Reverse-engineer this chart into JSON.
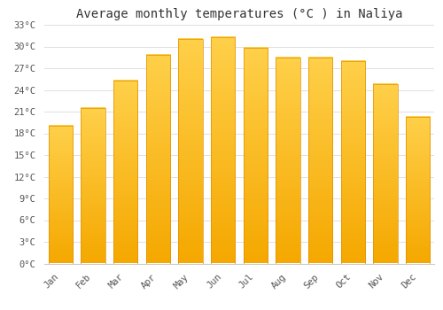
{
  "title": "Average monthly temperatures (°C ) in Naliya",
  "months": [
    "Jan",
    "Feb",
    "Mar",
    "Apr",
    "May",
    "Jun",
    "Jul",
    "Aug",
    "Sep",
    "Oct",
    "Nov",
    "Dec"
  ],
  "temperatures": [
    19.0,
    21.5,
    25.3,
    28.8,
    31.0,
    31.3,
    29.8,
    28.5,
    28.5,
    28.0,
    24.8,
    20.3
  ],
  "bar_color_top": "#FFD04A",
  "bar_color_bottom": "#F5A800",
  "bar_edge_color": "#E09000",
  "ylim": [
    0,
    33
  ],
  "yticks": [
    0,
    3,
    6,
    9,
    12,
    15,
    18,
    21,
    24,
    27,
    30,
    33
  ],
  "ytick_labels": [
    "0°C",
    "3°C",
    "6°C",
    "9°C",
    "12°C",
    "15°C",
    "18°C",
    "21°C",
    "24°C",
    "27°C",
    "30°C",
    "33°C"
  ],
  "background_color": "#ffffff",
  "grid_color": "#e0e0e0",
  "title_fontsize": 10,
  "tick_fontsize": 7.5,
  "font_family": "monospace",
  "bar_width": 0.75
}
